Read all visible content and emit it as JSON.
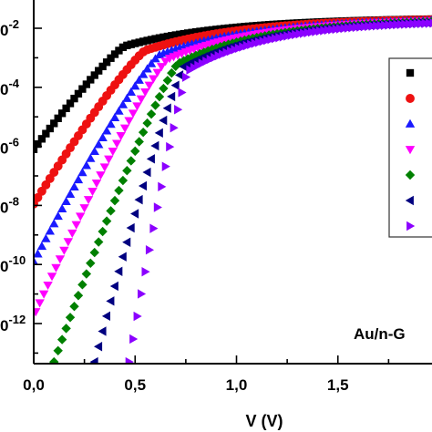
{
  "chart_data": {
    "type": "scatter",
    "title": "",
    "xlabel": "V (V)",
    "ylabel": "",
    "yscale": "log",
    "xlim": [
      0.0,
      2.1
    ],
    "ylim_log10": [
      -13.5,
      -1.5
    ],
    "x_ticks": [
      0.0,
      0.5,
      1.0,
      1.5,
      2.0
    ],
    "x_tick_labels": [
      "0,0",
      "0,5",
      "1,0",
      "1,5",
      "2,"
    ],
    "y_tick_labels": [
      {
        "exp": -2,
        "text": "0-2"
      },
      {
        "exp": -4,
        "text": "0-4"
      },
      {
        "exp": -6,
        "text": "0-6"
      },
      {
        "exp": -8,
        "text": "0-8"
      },
      {
        "exp": -10,
        "text": "0-10"
      },
      {
        "exp": -12,
        "text": "0-12"
      }
    ],
    "annotation": "Au/n-G",
    "legend_position": "right",
    "series": [
      {
        "marker": "square",
        "color": "#000000",
        "curve": {
          "x_start": 0.0,
          "y_start_log10": -6.1,
          "knee_x": 0.45,
          "knee_log10": -2.6,
          "end_log10": -1.68
        }
      },
      {
        "marker": "circle",
        "color": "#ee1111",
        "curve": {
          "x_start": 0.0,
          "y_start_log10": -7.95,
          "knee_x": 0.55,
          "knee_log10": -2.75,
          "end_log10": -1.7
        }
      },
      {
        "marker": "triangle-up",
        "color": "#1a1aff",
        "curve": {
          "x_start": 0.0,
          "y_start_log10": -9.9,
          "knee_x": 0.62,
          "knee_log10": -2.9,
          "end_log10": -1.72
        }
      },
      {
        "marker": "triangle-down",
        "color": "#ff00ff",
        "curve": {
          "x_start": 0.01,
          "y_start_log10": -11.6,
          "knee_x": 0.66,
          "knee_log10": -3.05,
          "end_log10": -1.74
        }
      },
      {
        "marker": "diamond",
        "color": "#008000",
        "curve": {
          "x_start": 0.1,
          "y_start_log10": -13.3,
          "knee_x": 0.71,
          "knee_log10": -3.2,
          "end_log10": -1.76
        }
      },
      {
        "marker": "triangle-left",
        "color": "#000080",
        "curve": {
          "x_start": 0.3,
          "y_start_log10": -13.3,
          "knee_x": 0.74,
          "knee_log10": -3.3,
          "end_log10": -1.78
        }
      },
      {
        "marker": "triangle-right",
        "color": "#8b00ff",
        "curve": {
          "x_start": 0.47,
          "y_start_log10": -13.3,
          "knee_x": 0.76,
          "knee_log10": -3.45,
          "end_log10": -1.8
        }
      }
    ]
  }
}
